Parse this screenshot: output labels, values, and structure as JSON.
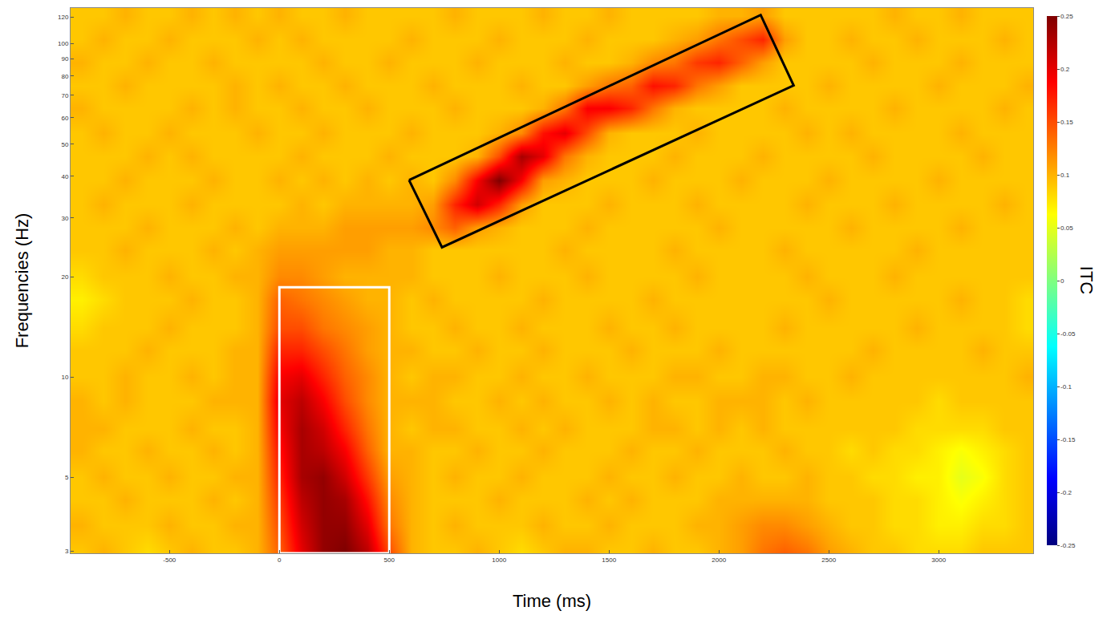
{
  "chart_data": {
    "type": "heatmap",
    "x_label": "Time (ms)",
    "y_label": "Frequencies (Hz)",
    "colorbar_label": "ITC",
    "log": "y",
    "xlim": [
      -950,
      3430
    ],
    "ylim": [
      2.96,
      128
    ],
    "xticks": [
      -500,
      0,
      500,
      1000,
      1500,
      2000,
      2500,
      3000
    ],
    "yticks": [
      3,
      5,
      10,
      20,
      30,
      40,
      50,
      60,
      70,
      80,
      90,
      100,
      120
    ],
    "colorbar_range": [
      -0.25,
      0.25
    ],
    "colorbar_ticks": [
      -0.25,
      -0.2,
      -0.15,
      -0.1,
      -0.05,
      0,
      0.05,
      0.1,
      0.15,
      0.2,
      0.25
    ],
    "x": [
      -900,
      -800,
      -700,
      -600,
      -500,
      -400,
      -300,
      -200,
      -100,
      0,
      100,
      200,
      300,
      400,
      500,
      600,
      700,
      800,
      900,
      1000,
      1100,
      1200,
      1300,
      1400,
      1500,
      1600,
      1700,
      1800,
      1900,
      2000,
      2100,
      2200,
      2300,
      2400,
      2500,
      2600,
      2700,
      2800,
      2900,
      3000,
      3100,
      3200,
      3300,
      3400
    ],
    "y": [
      3,
      3.6,
      4.3,
      5,
      6,
      7,
      8.5,
      10,
      12,
      14,
      17,
      20,
      24,
      28,
      33,
      39,
      46,
      54,
      64,
      75,
      88,
      103,
      121
    ],
    "z": [
      [
        0.09,
        0.1,
        0.09,
        0.08,
        0.09,
        0.1,
        0.09,
        0.09,
        0.1,
        0.14,
        0.2,
        0.24,
        0.25,
        0.22,
        0.15,
        0.1,
        0.09,
        0.09,
        0.1,
        0.09,
        0.08,
        0.09,
        0.1,
        0.1,
        0.09,
        0.09,
        0.1,
        0.09,
        0.09,
        0.1,
        0.11,
        0.13,
        0.14,
        0.13,
        0.11,
        0.1,
        0.09,
        0.09,
        0.08,
        0.08,
        0.08,
        0.09,
        0.09,
        0.09
      ],
      [
        0.1,
        0.09,
        0.09,
        0.09,
        0.1,
        0.09,
        0.09,
        0.1,
        0.1,
        0.15,
        0.21,
        0.24,
        0.24,
        0.2,
        0.13,
        0.1,
        0.09,
        0.1,
        0.09,
        0.09,
        0.09,
        0.1,
        0.09,
        0.09,
        0.1,
        0.09,
        0.09,
        0.09,
        0.1,
        0.1,
        0.11,
        0.12,
        0.12,
        0.11,
        0.1,
        0.09,
        0.09,
        0.08,
        0.08,
        0.07,
        0.07,
        0.08,
        0.08,
        0.09
      ],
      [
        0.09,
        0.09,
        0.1,
        0.09,
        0.09,
        0.09,
        0.1,
        0.09,
        0.1,
        0.16,
        0.22,
        0.24,
        0.23,
        0.18,
        0.12,
        0.1,
        0.09,
        0.09,
        0.09,
        0.1,
        0.09,
        0.09,
        0.09,
        0.1,
        0.09,
        0.1,
        0.09,
        0.09,
        0.09,
        0.1,
        0.1,
        0.1,
        0.1,
        0.1,
        0.09,
        0.09,
        0.09,
        0.08,
        0.08,
        0.07,
        0.06,
        0.07,
        0.08,
        0.09
      ],
      [
        0.09,
        0.1,
        0.09,
        0.09,
        0.1,
        0.09,
        0.09,
        0.1,
        0.1,
        0.17,
        0.23,
        0.24,
        0.21,
        0.16,
        0.11,
        0.1,
        0.09,
        0.1,
        0.09,
        0.09,
        0.1,
        0.09,
        0.09,
        0.09,
        0.1,
        0.09,
        0.09,
        0.1,
        0.09,
        0.09,
        0.1,
        0.09,
        0.09,
        0.1,
        0.09,
        0.09,
        0.08,
        0.08,
        0.07,
        0.07,
        0.05,
        0.06,
        0.08,
        0.09
      ],
      [
        0.1,
        0.09,
        0.09,
        0.1,
        0.09,
        0.09,
        0.1,
        0.09,
        0.1,
        0.18,
        0.23,
        0.22,
        0.19,
        0.14,
        0.1,
        0.1,
        0.09,
        0.09,
        0.1,
        0.09,
        0.09,
        0.1,
        0.09,
        0.09,
        0.09,
        0.1,
        0.09,
        0.09,
        0.1,
        0.09,
        0.09,
        0.09,
        0.1,
        0.09,
        0.09,
        0.08,
        0.09,
        0.08,
        0.08,
        0.07,
        0.06,
        0.07,
        0.08,
        0.09
      ],
      [
        0.1,
        0.1,
        0.09,
        0.09,
        0.09,
        0.1,
        0.09,
        0.09,
        0.1,
        0.19,
        0.23,
        0.21,
        0.17,
        0.13,
        0.1,
        0.09,
        0.1,
        0.1,
        0.09,
        0.09,
        0.1,
        0.09,
        0.1,
        0.09,
        0.09,
        0.09,
        0.1,
        0.1,
        0.09,
        0.1,
        0.09,
        0.1,
        0.09,
        0.09,
        0.09,
        0.09,
        0.09,
        0.09,
        0.08,
        0.08,
        0.08,
        0.08,
        0.09,
        0.09
      ],
      [
        0.1,
        0.09,
        0.1,
        0.09,
        0.09,
        0.09,
        0.1,
        0.1,
        0.1,
        0.2,
        0.22,
        0.19,
        0.15,
        0.12,
        0.1,
        0.1,
        0.1,
        0.09,
        0.09,
        0.1,
        0.09,
        0.1,
        0.09,
        0.09,
        0.1,
        0.09,
        0.1,
        0.09,
        0.09,
        0.1,
        0.1,
        0.1,
        0.09,
        0.1,
        0.09,
        0.09,
        0.09,
        0.09,
        0.09,
        0.08,
        0.09,
        0.09,
        0.09,
        0.09
      ],
      [
        0.09,
        0.09,
        0.1,
        0.09,
        0.09,
        0.1,
        0.09,
        0.1,
        0.1,
        0.19,
        0.2,
        0.17,
        0.14,
        0.12,
        0.1,
        0.09,
        0.1,
        0.1,
        0.09,
        0.09,
        0.1,
        0.09,
        0.09,
        0.1,
        0.09,
        0.09,
        0.09,
        0.1,
        0.1,
        0.09,
        0.09,
        0.1,
        0.1,
        0.09,
        0.09,
        0.1,
        0.09,
        0.09,
        0.09,
        0.09,
        0.09,
        0.09,
        0.09,
        0.1
      ],
      [
        0.09,
        0.09,
        0.09,
        0.1,
        0.09,
        0.09,
        0.09,
        0.1,
        0.1,
        0.17,
        0.17,
        0.15,
        0.13,
        0.11,
        0.1,
        0.1,
        0.09,
        0.09,
        0.1,
        0.09,
        0.09,
        0.1,
        0.09,
        0.09,
        0.09,
        0.1,
        0.09,
        0.09,
        0.09,
        0.1,
        0.09,
        0.09,
        0.09,
        0.09,
        0.09,
        0.09,
        0.1,
        0.09,
        0.09,
        0.09,
        0.09,
        0.1,
        0.09,
        0.09
      ],
      [
        0.08,
        0.09,
        0.09,
        0.09,
        0.1,
        0.09,
        0.09,
        0.09,
        0.1,
        0.15,
        0.15,
        0.13,
        0.12,
        0.11,
        0.1,
        0.09,
        0.09,
        0.1,
        0.09,
        0.09,
        0.1,
        0.09,
        0.09,
        0.09,
        0.1,
        0.09,
        0.09,
        0.1,
        0.09,
        0.09,
        0.09,
        0.09,
        0.1,
        0.09,
        0.09,
        0.09,
        0.09,
        0.09,
        0.1,
        0.09,
        0.09,
        0.09,
        0.09,
        0.08
      ],
      [
        0.07,
        0.08,
        0.09,
        0.09,
        0.09,
        0.1,
        0.09,
        0.09,
        0.1,
        0.14,
        0.13,
        0.12,
        0.11,
        0.1,
        0.1,
        0.09,
        0.1,
        0.09,
        0.09,
        0.09,
        0.09,
        0.1,
        0.09,
        0.09,
        0.09,
        0.09,
        0.1,
        0.09,
        0.09,
        0.09,
        0.09,
        0.09,
        0.09,
        0.09,
        0.1,
        0.09,
        0.09,
        0.09,
        0.09,
        0.09,
        0.1,
        0.09,
        0.09,
        0.08
      ],
      [
        0.08,
        0.09,
        0.09,
        0.09,
        0.1,
        0.09,
        0.09,
        0.1,
        0.1,
        0.12,
        0.12,
        0.11,
        0.1,
        0.1,
        0.1,
        0.1,
        0.09,
        0.09,
        0.09,
        0.1,
        0.09,
        0.09,
        0.09,
        0.1,
        0.09,
        0.09,
        0.09,
        0.09,
        0.1,
        0.09,
        0.09,
        0.09,
        0.09,
        0.1,
        0.09,
        0.09,
        0.09,
        0.1,
        0.09,
        0.09,
        0.09,
        0.09,
        0.09,
        0.09
      ],
      [
        0.09,
        0.09,
        0.1,
        0.09,
        0.09,
        0.09,
        0.1,
        0.09,
        0.1,
        0.11,
        0.11,
        0.11,
        0.11,
        0.11,
        0.1,
        0.1,
        0.09,
        0.09,
        0.09,
        0.09,
        0.09,
        0.09,
        0.1,
        0.09,
        0.09,
        0.09,
        0.09,
        0.1,
        0.09,
        0.09,
        0.09,
        0.09,
        0.1,
        0.09,
        0.09,
        0.09,
        0.09,
        0.09,
        0.1,
        0.09,
        0.09,
        0.09,
        0.09,
        0.09
      ],
      [
        0.09,
        0.09,
        0.09,
        0.1,
        0.09,
        0.09,
        0.09,
        0.1,
        0.09,
        0.1,
        0.1,
        0.1,
        0.11,
        0.11,
        0.11,
        0.11,
        0.12,
        0.14,
        0.11,
        0.1,
        0.09,
        0.09,
        0.09,
        0.1,
        0.09,
        0.09,
        0.09,
        0.09,
        0.09,
        0.1,
        0.09,
        0.09,
        0.09,
        0.09,
        0.09,
        0.1,
        0.09,
        0.09,
        0.09,
        0.09,
        0.1,
        0.09,
        0.09,
        0.09
      ],
      [
        0.09,
        0.1,
        0.09,
        0.09,
        0.09,
        0.1,
        0.09,
        0.09,
        0.09,
        0.09,
        0.1,
        0.09,
        0.1,
        0.1,
        0.1,
        0.1,
        0.11,
        0.17,
        0.21,
        0.17,
        0.11,
        0.09,
        0.09,
        0.09,
        0.1,
        0.09,
        0.09,
        0.09,
        0.1,
        0.09,
        0.09,
        0.09,
        0.09,
        0.1,
        0.09,
        0.09,
        0.09,
        0.1,
        0.09,
        0.09,
        0.09,
        0.09,
        0.1,
        0.09
      ],
      [
        0.09,
        0.09,
        0.1,
        0.09,
        0.09,
        0.09,
        0.1,
        0.09,
        0.09,
        0.1,
        0.09,
        0.1,
        0.09,
        0.1,
        0.09,
        0.1,
        0.09,
        0.12,
        0.19,
        0.25,
        0.19,
        0.11,
        0.1,
        0.09,
        0.09,
        0.09,
        0.1,
        0.09,
        0.09,
        0.09,
        0.1,
        0.09,
        0.09,
        0.09,
        0.1,
        0.09,
        0.09,
        0.09,
        0.09,
        0.1,
        0.09,
        0.09,
        0.09,
        0.09
      ],
      [
        0.09,
        0.09,
        0.09,
        0.1,
        0.09,
        0.1,
        0.09,
        0.09,
        0.09,
        0.09,
        0.1,
        0.09,
        0.09,
        0.09,
        0.1,
        0.09,
        0.09,
        0.09,
        0.1,
        0.15,
        0.23,
        0.2,
        0.13,
        0.1,
        0.09,
        0.09,
        0.09,
        0.1,
        0.09,
        0.09,
        0.09,
        0.1,
        0.09,
        0.09,
        0.09,
        0.09,
        0.1,
        0.09,
        0.09,
        0.09,
        0.09,
        0.1,
        0.09,
        0.09
      ],
      [
        0.09,
        0.1,
        0.09,
        0.09,
        0.1,
        0.09,
        0.09,
        0.09,
        0.1,
        0.09,
        0.09,
        0.1,
        0.09,
        0.09,
        0.09,
        0.1,
        0.09,
        0.09,
        0.09,
        0.1,
        0.12,
        0.18,
        0.2,
        0.15,
        0.1,
        0.09,
        0.09,
        0.09,
        0.1,
        0.09,
        0.09,
        0.09,
        0.09,
        0.1,
        0.09,
        0.1,
        0.09,
        0.09,
        0.09,
        0.09,
        0.1,
        0.09,
        0.09,
        0.09
      ],
      [
        0.1,
        0.09,
        0.09,
        0.09,
        0.09,
        0.1,
        0.09,
        0.1,
        0.09,
        0.09,
        0.1,
        0.09,
        0.09,
        0.1,
        0.09,
        0.09,
        0.09,
        0.1,
        0.09,
        0.09,
        0.09,
        0.1,
        0.13,
        0.19,
        0.19,
        0.17,
        0.13,
        0.1,
        0.09,
        0.09,
        0.09,
        0.09,
        0.1,
        0.09,
        0.09,
        0.09,
        0.09,
        0.1,
        0.09,
        0.09,
        0.09,
        0.09,
        0.1,
        0.09
      ],
      [
        0.09,
        0.09,
        0.1,
        0.09,
        0.09,
        0.09,
        0.09,
        0.1,
        0.09,
        0.1,
        0.09,
        0.09,
        0.1,
        0.09,
        0.09,
        0.09,
        0.1,
        0.09,
        0.09,
        0.09,
        0.1,
        0.09,
        0.09,
        0.11,
        0.13,
        0.14,
        0.18,
        0.17,
        0.13,
        0.11,
        0.09,
        0.09,
        0.09,
        0.09,
        0.1,
        0.09,
        0.09,
        0.09,
        0.09,
        0.1,
        0.09,
        0.09,
        0.09,
        0.1
      ],
      [
        0.1,
        0.09,
        0.09,
        0.1,
        0.09,
        0.09,
        0.1,
        0.09,
        0.09,
        0.09,
        0.09,
        0.1,
        0.09,
        0.09,
        0.1,
        0.09,
        0.09,
        0.09,
        0.1,
        0.09,
        0.09,
        0.09,
        0.1,
        0.09,
        0.09,
        0.1,
        0.12,
        0.13,
        0.16,
        0.17,
        0.14,
        0.11,
        0.09,
        0.09,
        0.09,
        0.09,
        0.1,
        0.09,
        0.09,
        0.09,
        0.1,
        0.09,
        0.09,
        0.09
      ],
      [
        0.09,
        0.1,
        0.09,
        0.09,
        0.1,
        0.09,
        0.09,
        0.09,
        0.1,
        0.09,
        0.1,
        0.09,
        0.09,
        0.09,
        0.09,
        0.1,
        0.09,
        0.09,
        0.09,
        0.1,
        0.09,
        0.09,
        0.09,
        0.1,
        0.09,
        0.09,
        0.09,
        0.1,
        0.11,
        0.13,
        0.15,
        0.17,
        0.11,
        0.09,
        0.09,
        0.1,
        0.09,
        0.09,
        0.1,
        0.09,
        0.09,
        0.09,
        0.1,
        0.09
      ],
      [
        0.09,
        0.09,
        0.1,
        0.09,
        0.09,
        0.1,
        0.09,
        0.1,
        0.09,
        0.1,
        0.09,
        0.09,
        0.1,
        0.09,
        0.09,
        0.09,
        0.09,
        0.1,
        0.09,
        0.09,
        0.09,
        0.1,
        0.09,
        0.09,
        0.1,
        0.09,
        0.09,
        0.09,
        0.09,
        0.1,
        0.1,
        0.11,
        0.09,
        0.09,
        0.09,
        0.09,
        0.09,
        0.1,
        0.09,
        0.09,
        0.1,
        0.09,
        0.09,
        0.09
      ]
    ],
    "regions": [
      {
        "color": "white",
        "x": [
          0,
          500,
          500,
          0
        ],
        "y": [
          2.96,
          2.96,
          18.6,
          18.6
        ]
      },
      {
        "color": "black",
        "x": [
          590,
          2190,
          2340,
          740
        ],
        "y": [
          39,
          122,
          75,
          24.5
        ]
      }
    ]
  }
}
